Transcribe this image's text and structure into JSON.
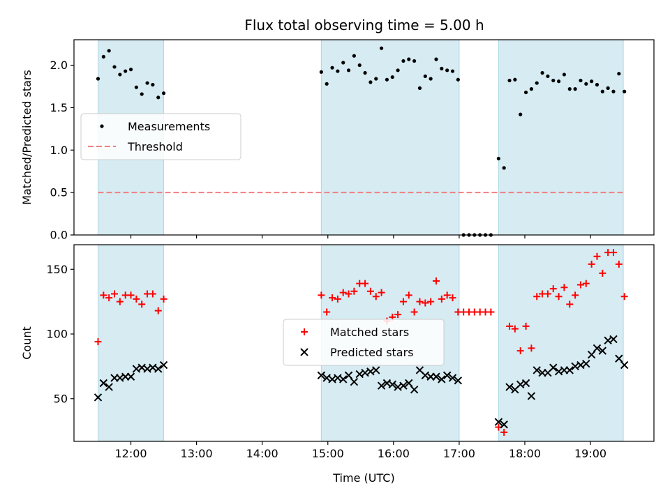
{
  "title": "Flux total observing time = 5.00 h",
  "chart_data": [
    {
      "type": "scatter",
      "ylabel": "Matched/Predicted stars",
      "xlabel": "",
      "x_range": [
        "11:08",
        "19:58"
      ],
      "ylim": [
        0,
        2.3
      ],
      "yticks": [
        0.0,
        0.5,
        1.0,
        1.5,
        2.0
      ],
      "ytick_labels": [
        "0.0",
        "0.5",
        "1.0",
        "1.5",
        "2.0"
      ],
      "xticks": [
        "12:00",
        "13:00",
        "14:00",
        "15:00",
        "16:00",
        "17:00",
        "18:00",
        "19:00"
      ],
      "grid": false,
      "legend_position": "center-left",
      "shaded_intervals": [
        [
          "11:30",
          "12:30"
        ],
        [
          "14:54",
          "17:00"
        ],
        [
          "17:36",
          "19:30"
        ]
      ],
      "shade_color": "#add8e6",
      "threshold": 0.5,
      "series": [
        {
          "name": "Measurements",
          "color": "#000000",
          "marker": "dot",
          "points": [
            [
              "11:30",
              1.84
            ],
            [
              "11:35",
              2.1
            ],
            [
              "11:40",
              2.17
            ],
            [
              "11:45",
              1.98
            ],
            [
              "11:50",
              1.89
            ],
            [
              "11:55",
              1.93
            ],
            [
              "12:00",
              1.95
            ],
            [
              "12:05",
              1.74
            ],
            [
              "12:10",
              1.66
            ],
            [
              "12:15",
              1.79
            ],
            [
              "12:20",
              1.77
            ],
            [
              "12:25",
              1.62
            ],
            [
              "12:30",
              1.67
            ],
            [
              "14:54",
              1.92
            ],
            [
              "14:59",
              1.78
            ],
            [
              "15:04",
              1.97
            ],
            [
              "15:09",
              1.93
            ],
            [
              "15:14",
              2.03
            ],
            [
              "15:19",
              1.94
            ],
            [
              "15:24",
              2.11
            ],
            [
              "15:29",
              2.0
            ],
            [
              "15:34",
              1.91
            ],
            [
              "15:39",
              1.8
            ],
            [
              "15:44",
              1.84
            ],
            [
              "15:49",
              2.2
            ],
            [
              "15:54",
              1.83
            ],
            [
              "15:59",
              1.86
            ],
            [
              "16:04",
              1.94
            ],
            [
              "16:09",
              2.05
            ],
            [
              "16:14",
              2.07
            ],
            [
              "16:19",
              2.05
            ],
            [
              "16:24",
              1.73
            ],
            [
              "16:29",
              1.87
            ],
            [
              "16:34",
              1.84
            ],
            [
              "16:39",
              2.07
            ],
            [
              "16:44",
              1.96
            ],
            [
              "16:49",
              1.94
            ],
            [
              "16:54",
              1.93
            ],
            [
              "16:59",
              1.83
            ],
            [
              "17:04",
              0.0
            ],
            [
              "17:09",
              0.0
            ],
            [
              "17:14",
              0.0
            ],
            [
              "17:19",
              0.0
            ],
            [
              "17:24",
              0.0
            ],
            [
              "17:29",
              0.0
            ],
            [
              "17:36",
              0.9
            ],
            [
              "17:41",
              0.79
            ],
            [
              "17:46",
              1.82
            ],
            [
              "17:51",
              1.83
            ],
            [
              "17:56",
              1.42
            ],
            [
              "18:01",
              1.68
            ],
            [
              "18:06",
              1.72
            ],
            [
              "18:11",
              1.79
            ],
            [
              "18:16",
              1.91
            ],
            [
              "18:21",
              1.87
            ],
            [
              "18:26",
              1.82
            ],
            [
              "18:31",
              1.81
            ],
            [
              "18:36",
              1.89
            ],
            [
              "18:41",
              1.72
            ],
            [
              "18:46",
              1.72
            ],
            [
              "18:51",
              1.82
            ],
            [
              "18:56",
              1.78
            ],
            [
              "19:01",
              1.81
            ],
            [
              "19:06",
              1.77
            ],
            [
              "19:11",
              1.69
            ],
            [
              "19:16",
              1.73
            ],
            [
              "19:21",
              1.69
            ],
            [
              "19:26",
              1.9
            ],
            [
              "19:31",
              1.69
            ]
          ]
        },
        {
          "name": "Threshold",
          "color": "#f08080",
          "style": "dashed",
          "value": 0.5,
          "x": [
            "11:30",
            "19:30"
          ]
        }
      ]
    },
    {
      "type": "scatter",
      "ylabel": "Count",
      "xlabel": "Time (UTC)",
      "x_range": [
        "11:08",
        "19:58"
      ],
      "ylim": [
        17,
        169
      ],
      "yticks": [
        50,
        100,
        150
      ],
      "ytick_labels": [
        "50",
        "100",
        "150"
      ],
      "xticks": [
        "12:00",
        "13:00",
        "14:00",
        "15:00",
        "16:00",
        "17:00",
        "18:00",
        "19:00"
      ],
      "grid": false,
      "legend_position": "center",
      "shaded_intervals": [
        [
          "11:30",
          "12:30"
        ],
        [
          "14:54",
          "17:00"
        ],
        [
          "17:36",
          "19:30"
        ]
      ],
      "shade_color": "#add8e6",
      "series": [
        {
          "name": "Matched stars",
          "color": "#ff0000",
          "marker": "plus",
          "points": [
            [
              "11:30",
              94
            ],
            [
              "11:35",
              130
            ],
            [
              "11:40",
              128
            ],
            [
              "11:45",
              131
            ],
            [
              "11:50",
              125
            ],
            [
              "11:55",
              130
            ],
            [
              "12:00",
              130
            ],
            [
              "12:05",
              127
            ],
            [
              "12:10",
              123
            ],
            [
              "12:15",
              131
            ],
            [
              "12:20",
              131
            ],
            [
              "12:25",
              118
            ],
            [
              "12:30",
              127
            ],
            [
              "14:54",
              130
            ],
            [
              "14:59",
              117
            ],
            [
              "15:04",
              128
            ],
            [
              "15:09",
              127
            ],
            [
              "15:14",
              132
            ],
            [
              "15:19",
              131
            ],
            [
              "15:24",
              133
            ],
            [
              "15:29",
              139
            ],
            [
              "15:34",
              139
            ],
            [
              "15:39",
              133
            ],
            [
              "15:44",
              129
            ],
            [
              "15:49",
              132
            ],
            [
              "15:54",
              110
            ],
            [
              "15:59",
              113
            ],
            [
              "16:04",
              115
            ],
            [
              "16:09",
              125
            ],
            [
              "16:14",
              130
            ],
            [
              "16:19",
              117
            ],
            [
              "16:24",
              125
            ],
            [
              "16:29",
              124
            ],
            [
              "16:34",
              125
            ],
            [
              "16:39",
              141
            ],
            [
              "16:44",
              127
            ],
            [
              "16:49",
              130
            ],
            [
              "16:54",
              128
            ],
            [
              "16:59",
              117
            ],
            [
              "17:04",
              117
            ],
            [
              "17:09",
              117
            ],
            [
              "17:14",
              117
            ],
            [
              "17:19",
              117
            ],
            [
              "17:24",
              117
            ],
            [
              "17:29",
              117
            ],
            [
              "17:36",
              28
            ],
            [
              "17:41",
              24
            ],
            [
              "17:46",
              106
            ],
            [
              "17:51",
              104
            ],
            [
              "17:56",
              87
            ],
            [
              "18:01",
              106
            ],
            [
              "18:06",
              89
            ],
            [
              "18:11",
              129
            ],
            [
              "18:16",
              131
            ],
            [
              "18:21",
              131
            ],
            [
              "18:26",
              135
            ],
            [
              "18:31",
              129
            ],
            [
              "18:36",
              136
            ],
            [
              "18:41",
              123
            ],
            [
              "18:46",
              130
            ],
            [
              "18:51",
              138
            ],
            [
              "18:56",
              139
            ],
            [
              "19:01",
              154
            ],
            [
              "19:06",
              160
            ],
            [
              "19:11",
              147
            ],
            [
              "19:16",
              163
            ],
            [
              "19:21",
              163
            ],
            [
              "19:26",
              154
            ],
            [
              "19:31",
              129
            ]
          ]
        },
        {
          "name": "Predicted stars",
          "color": "#000000",
          "marker": "x",
          "points": [
            [
              "11:30",
              51
            ],
            [
              "11:35",
              62
            ],
            [
              "11:40",
              59
            ],
            [
              "11:45",
              66
            ],
            [
              "11:50",
              66
            ],
            [
              "11:55",
              67
            ],
            [
              "12:00",
              67
            ],
            [
              "12:05",
              73
            ],
            [
              "12:10",
              74
            ],
            [
              "12:15",
              73
            ],
            [
              "12:20",
              74
            ],
            [
              "12:25",
              73
            ],
            [
              "12:30",
              76
            ],
            [
              "14:54",
              68
            ],
            [
              "14:59",
              66
            ],
            [
              "15:04",
              65
            ],
            [
              "15:09",
              66
            ],
            [
              "15:14",
              65
            ],
            [
              "15:19",
              68
            ],
            [
              "15:24",
              63
            ],
            [
              "15:29",
              69
            ],
            [
              "15:34",
              70
            ],
            [
              "15:39",
              71
            ],
            [
              "15:44",
              72
            ],
            [
              "15:49",
              60
            ],
            [
              "15:54",
              62
            ],
            [
              "15:59",
              61
            ],
            [
              "16:04",
              59
            ],
            [
              "16:09",
              60
            ],
            [
              "16:14",
              62
            ],
            [
              "16:19",
              57
            ],
            [
              "16:24",
              72
            ],
            [
              "16:29",
              68
            ],
            [
              "16:34",
              67
            ],
            [
              "16:39",
              67
            ],
            [
              "16:44",
              65
            ],
            [
              "16:49",
              68
            ],
            [
              "16:54",
              66
            ],
            [
              "16:59",
              64
            ],
            [
              "17:36",
              32
            ],
            [
              "17:41",
              30
            ],
            [
              "17:46",
              59
            ],
            [
              "17:51",
              57
            ],
            [
              "17:56",
              61
            ],
            [
              "18:01",
              62
            ],
            [
              "18:06",
              52
            ],
            [
              "18:11",
              72
            ],
            [
              "18:16",
              70
            ],
            [
              "18:21",
              70
            ],
            [
              "18:26",
              74
            ],
            [
              "18:31",
              71
            ],
            [
              "18:36",
              72
            ],
            [
              "18:41",
              72
            ],
            [
              "18:46",
              75
            ],
            [
              "18:51",
              76
            ],
            [
              "18:56",
              77
            ],
            [
              "19:01",
              84
            ],
            [
              "19:06",
              89
            ],
            [
              "19:11",
              87
            ],
            [
              "19:16",
              95
            ],
            [
              "19:21",
              96
            ],
            [
              "19:26",
              81
            ],
            [
              "19:31",
              76
            ]
          ]
        }
      ]
    }
  ]
}
